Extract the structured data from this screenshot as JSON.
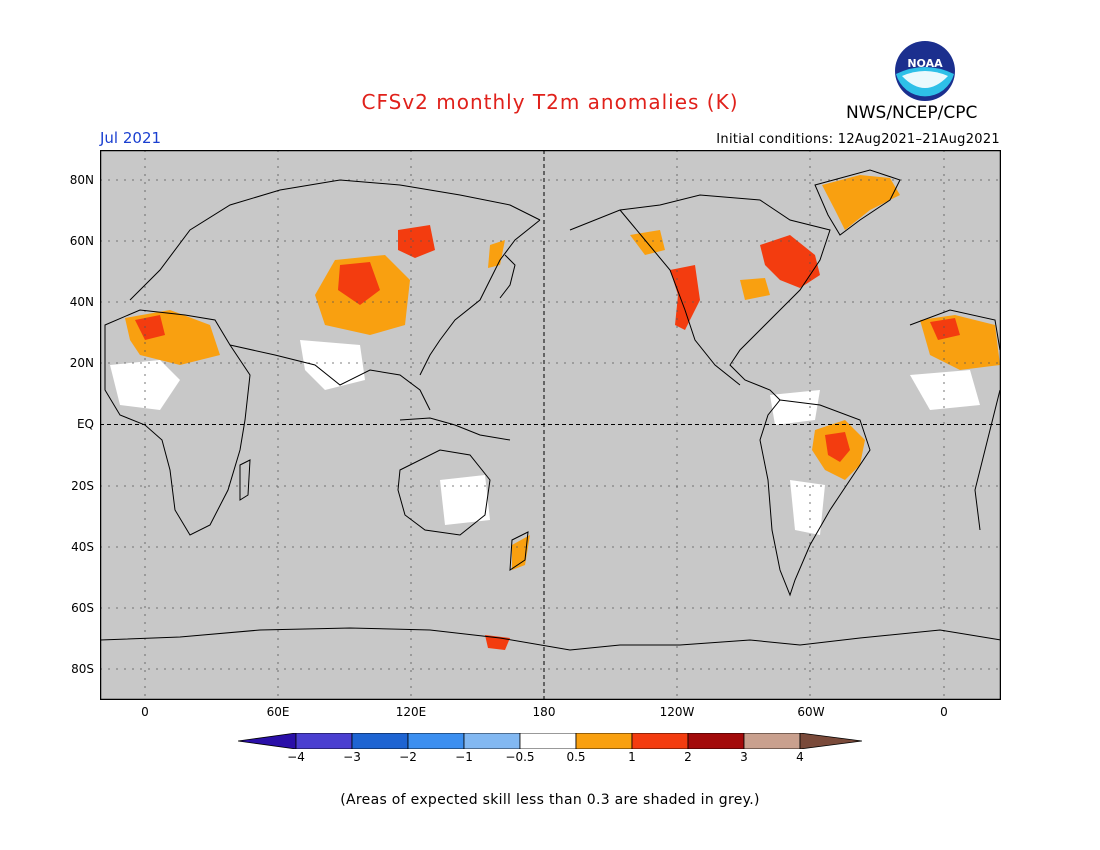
{
  "title": "CFSv2 monthly T2m anomalies (K)",
  "agency": "NWS/NCEP/CPC",
  "logo_text": "NOAA",
  "period": "Jul 2021",
  "initial_conditions": "Initial conditions: 12Aug2021–21Aug2021",
  "lat_labels": [
    "80N",
    "60N",
    "40N",
    "20N",
    "EQ",
    "20S",
    "40S",
    "60S",
    "80S"
  ],
  "lon_labels": [
    "0",
    "60E",
    "120E",
    "180",
    "120W",
    "60W",
    "0"
  ],
  "colorbar": {
    "labels": [
      "−4",
      "−3",
      "−2",
      "−1",
      "−0.5",
      "0.5",
      "1",
      "2",
      "3",
      "4"
    ],
    "colors": [
      "#2a0fa8",
      "#4a3fd0",
      "#1e64d2",
      "#3c8ff0",
      "#82b8f2",
      "#ffffff",
      "#f9a010",
      "#f33c0f",
      "#a30b0b",
      "#c9a08e",
      "#7a4a3a"
    ]
  },
  "note": "(Areas of expected skill less than 0.3 are shaded in grey.)",
  "map_colors": {
    "background": "#c8c8c8",
    "white": "#ffffff",
    "orange": "#f9a010",
    "red": "#f33c0f",
    "darkred": "#a30b0b",
    "lightblue": "#82b8f2"
  }
}
